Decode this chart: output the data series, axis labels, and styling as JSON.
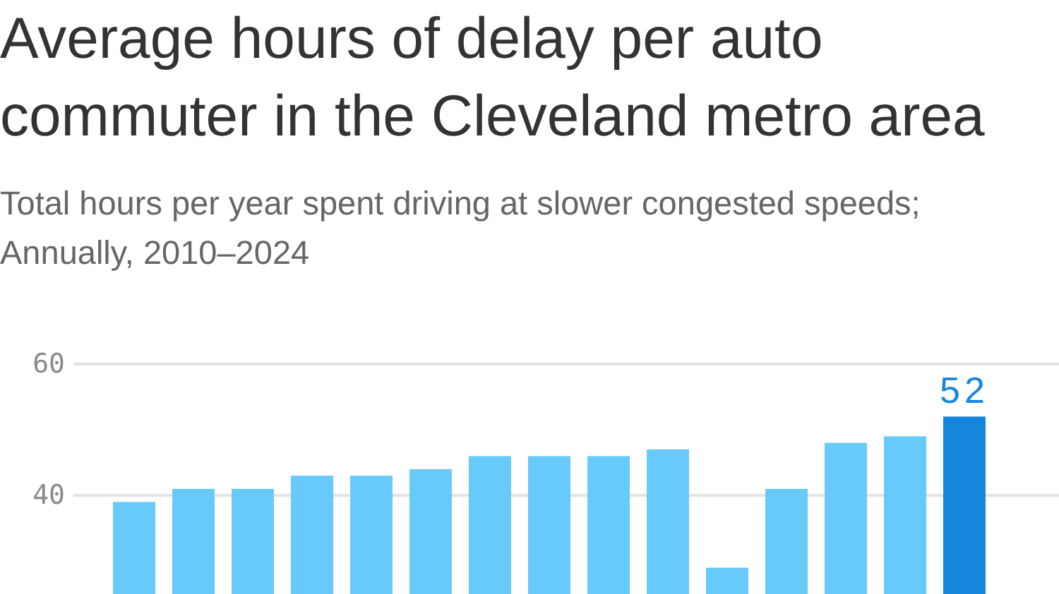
{
  "chart_data": {
    "type": "bar",
    "title": "Average hours of delay per auto commuter in the Cleveland metro area",
    "subtitle": "Total hours per year spent driving at slower congested speeds; Annually, 2010–2024",
    "categories": [
      null,
      null,
      null,
      null,
      null,
      null,
      null,
      null,
      null,
      null,
      null,
      null,
      null,
      null,
      null
    ],
    "values": [
      39,
      41,
      41,
      43,
      43,
      44,
      46,
      46,
      46,
      47,
      29,
      41,
      48,
      49,
      52
    ],
    "colors": [
      "#68c9fb",
      "#68c9fb",
      "#68c9fb",
      "#68c9fb",
      "#68c9fb",
      "#68c9fb",
      "#68c9fb",
      "#68c9fb",
      "#68c9fb",
      "#68c9fb",
      "#68c9fb",
      "#68c9fb",
      "#68c9fb",
      "#68c9fb",
      "#1686dc"
    ],
    "value_labels": [
      null,
      null,
      null,
      null,
      null,
      null,
      null,
      null,
      null,
      null,
      null,
      null,
      null,
      null,
      "52"
    ],
    "ylim": [
      25,
      60
    ],
    "yticks": [
      40,
      60
    ],
    "grid": "y",
    "tick_labels": "y"
  }
}
